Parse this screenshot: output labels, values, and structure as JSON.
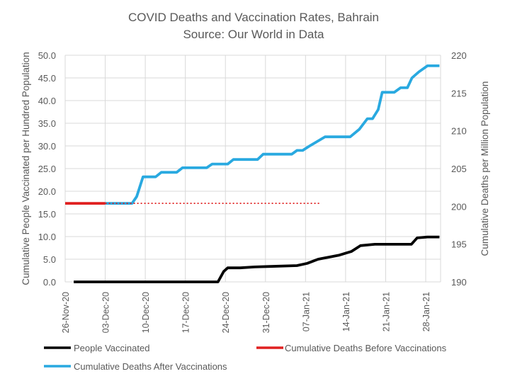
{
  "chart_data": {
    "type": "line",
    "title": "COVID Deaths and Vaccination Rates, Bahrain",
    "subtitle": "Source: Our World in Data",
    "x_unit": "days since 26-Nov-20",
    "xlim": [
      0,
      65.5
    ],
    "x_ticks": [
      {
        "day": 0,
        "label": "26-Nov-20"
      },
      {
        "day": 7,
        "label": "03-Dec-20"
      },
      {
        "day": 14,
        "label": "10-Dec-20"
      },
      {
        "day": 21,
        "label": "17-Dec-20"
      },
      {
        "day": 28,
        "label": "24-Dec-20"
      },
      {
        "day": 35,
        "label": "31-Dec-20"
      },
      {
        "day": 42,
        "label": "07-Jan-21"
      },
      {
        "day": 49,
        "label": "14-Jan-21"
      },
      {
        "day": 56,
        "label": "21-Jan-21"
      },
      {
        "day": 63,
        "label": "28-Jan-21"
      }
    ],
    "y_left": {
      "label": "Cumulative People Vaccinated per Hundred Population",
      "ylim": [
        0,
        50
      ],
      "ticks": [
        "0.0",
        "5.0",
        "10.0",
        "15.0",
        "20.0",
        "25.0",
        "30.0",
        "35.0",
        "40.0",
        "45.0",
        "50.0"
      ]
    },
    "y_right": {
      "label": "Cumulative Deaths per Million Population",
      "ylim": [
        190,
        220
      ],
      "ticks": [
        "190",
        "195",
        "200",
        "205",
        "210",
        "215",
        "220"
      ]
    },
    "grid": true,
    "legend_position": "bottom",
    "series": [
      {
        "name": "People Vaccinated",
        "axis": "left",
        "color": "#000000",
        "style": "solid",
        "points": [
          [
            1.5,
            0
          ],
          [
            26.7,
            0
          ],
          [
            27.7,
            2.3
          ],
          [
            28.4,
            3.1
          ],
          [
            30.6,
            3.1
          ],
          [
            33.1,
            3.3
          ],
          [
            35.8,
            3.4
          ],
          [
            40.5,
            3.6
          ],
          [
            42.3,
            4.1
          ],
          [
            44.2,
            5.0
          ],
          [
            47.9,
            5.9
          ],
          [
            50,
            6.7
          ],
          [
            51.6,
            8.0
          ],
          [
            54.1,
            8.3
          ],
          [
            60.5,
            8.3
          ],
          [
            61.5,
            9.7
          ],
          [
            63.3,
            9.9
          ],
          [
            65.4,
            9.9
          ]
        ]
      },
      {
        "name": "Cumulative Deaths Before Vaccinations",
        "axis": "right",
        "color": "#e02020",
        "style": "solid",
        "points": [
          [
            0,
            200.4
          ],
          [
            7,
            200.4
          ]
        ]
      },
      {
        "name": "Cumulative Deaths Before Vaccinations (extended)",
        "axis": "right",
        "color": "#e02020",
        "style": "dotted",
        "legend": false,
        "points": [
          [
            7,
            200.4
          ],
          [
            44.5,
            200.4
          ]
        ]
      },
      {
        "name": "Cumulative Deaths After Vaccinations",
        "axis": "right",
        "color": "#29a9e0",
        "style": "solid",
        "points": [
          [
            7,
            200.4
          ],
          [
            11.7,
            200.4
          ],
          [
            12.5,
            201.3
          ],
          [
            13.6,
            203.9
          ],
          [
            15.8,
            203.9
          ],
          [
            16.8,
            204.5
          ],
          [
            19.5,
            204.5
          ],
          [
            20.5,
            205.1
          ],
          [
            24.7,
            205.1
          ],
          [
            25.7,
            205.6
          ],
          [
            28.4,
            205.6
          ],
          [
            29.4,
            206.2
          ],
          [
            33.6,
            206.2
          ],
          [
            34.6,
            206.9
          ],
          [
            39.6,
            206.9
          ],
          [
            40.5,
            207.4
          ],
          [
            41.5,
            207.4
          ],
          [
            42.5,
            207.9
          ],
          [
            45.4,
            209.2
          ],
          [
            49.8,
            209.2
          ],
          [
            51.4,
            210.2
          ],
          [
            52.8,
            211.6
          ],
          [
            53.7,
            211.6
          ],
          [
            54.7,
            212.8
          ],
          [
            55.4,
            215.1
          ],
          [
            57.5,
            215.1
          ],
          [
            58.6,
            215.7
          ],
          [
            59.8,
            215.7
          ],
          [
            60.6,
            217.0
          ],
          [
            61.8,
            217.8
          ],
          [
            63.3,
            218.6
          ],
          [
            65.4,
            218.6
          ]
        ]
      }
    ]
  }
}
